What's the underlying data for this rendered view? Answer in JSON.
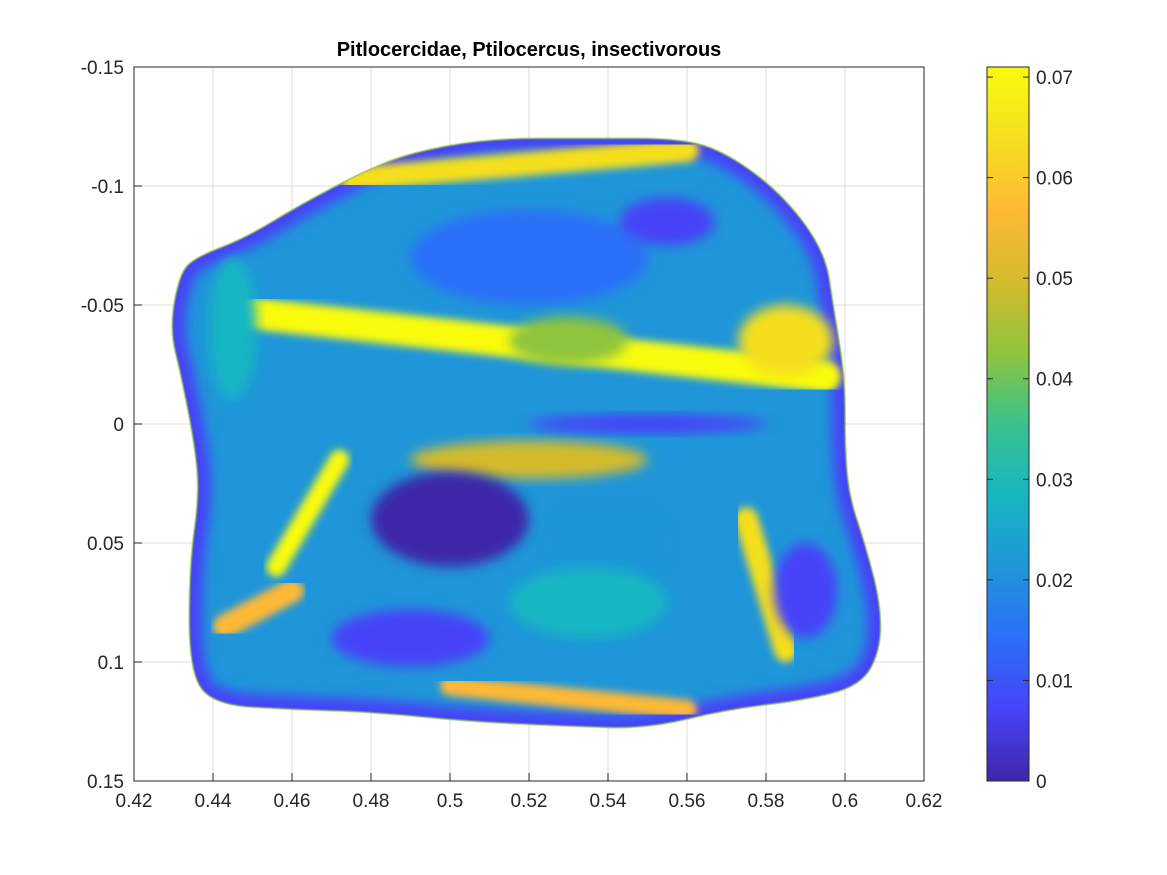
{
  "chart_data": {
    "type": "heatmap",
    "title": "Pitlocercidae, Ptilocercus, insectivorous",
    "xlabel": "",
    "ylabel": "",
    "xlim": [
      0.42,
      0.62
    ],
    "ylim": [
      -0.15,
      0.15
    ],
    "y_reversed": true,
    "grid": true,
    "x_ticks": [
      "0.42",
      "0.44",
      "0.46",
      "0.48",
      "0.5",
      "0.52",
      "0.54",
      "0.56",
      "0.58",
      "0.6",
      "0.62"
    ],
    "y_ticks": [
      "-0.15",
      "-0.1",
      "-0.05",
      "0",
      "0.05",
      "0.1",
      "0.15"
    ],
    "colorbar": {
      "colormap": "parula",
      "range": [
        0,
        0.071
      ],
      "ticks": [
        "0",
        "0.01",
        "0.02",
        "0.03",
        "0.04",
        "0.05",
        "0.06",
        "0.07"
      ],
      "colors": [
        "#3e26a8",
        "#4743f8",
        "#2b6ff9",
        "#1f96d9",
        "#16b6c2",
        "#3ac18d",
        "#8fc43c",
        "#d5bb2c",
        "#feb935",
        "#f5df1e",
        "#f9fb0e"
      ]
    },
    "surface_outline": [
      [
        0.4355,
        -0.07
      ],
      [
        0.448,
        -0.078
      ],
      [
        0.462,
        -0.092
      ],
      [
        0.478,
        -0.106
      ],
      [
        0.49,
        -0.114
      ],
      [
        0.51,
        -0.12
      ],
      [
        0.535,
        -0.12
      ],
      [
        0.56,
        -0.12
      ],
      [
        0.572,
        -0.112
      ],
      [
        0.585,
        -0.095
      ],
      [
        0.595,
        -0.072
      ],
      [
        0.597,
        -0.05
      ],
      [
        0.599,
        -0.03
      ],
      [
        0.6,
        -0.015
      ],
      [
        0.6,
        0.01
      ],
      [
        0.601,
        0.03
      ],
      [
        0.605,
        0.05
      ],
      [
        0.609,
        0.075
      ],
      [
        0.609,
        0.095
      ],
      [
        0.604,
        0.11
      ],
      [
        0.59,
        0.116
      ],
      [
        0.57,
        0.12
      ],
      [
        0.55,
        0.128
      ],
      [
        0.53,
        0.127
      ],
      [
        0.505,
        0.125
      ],
      [
        0.48,
        0.121
      ],
      [
        0.46,
        0.12
      ],
      [
        0.44,
        0.118
      ],
      [
        0.434,
        0.104
      ],
      [
        0.434,
        0.06
      ],
      [
        0.4365,
        0.03
      ],
      [
        0.4355,
        0.01
      ],
      [
        0.432,
        -0.02
      ],
      [
        0.429,
        -0.04
      ],
      [
        0.4315,
        -0.063
      ]
    ],
    "features": [
      {
        "shape": "band",
        "from": [
          0.447,
          -0.047
        ],
        "to": [
          0.595,
          -0.02
        ],
        "width": 0.008,
        "value": 0.07
      },
      {
        "shape": "band",
        "from": [
          0.475,
          -0.103
        ],
        "to": [
          0.56,
          -0.115
        ],
        "width": 0.006,
        "value": 0.065
      },
      {
        "shape": "band",
        "from": [
          0.456,
          0.06
        ],
        "to": [
          0.472,
          0.015
        ],
        "width": 0.005,
        "value": 0.07
      },
      {
        "shape": "band",
        "from": [
          0.443,
          0.085
        ],
        "to": [
          0.46,
          0.07
        ],
        "width": 0.006,
        "value": 0.06
      },
      {
        "shape": "band",
        "from": [
          0.575,
          0.04
        ],
        "to": [
          0.585,
          0.095
        ],
        "width": 0.006,
        "value": 0.063
      },
      {
        "shape": "band",
        "from": [
          0.5,
          0.11
        ],
        "to": [
          0.56,
          0.12
        ],
        "width": 0.005,
        "value": 0.06
      },
      {
        "shape": "blob",
        "center": [
          0.585,
          -0.035
        ],
        "radius": [
          0.012,
          0.015
        ],
        "value": 0.062
      },
      {
        "shape": "blob",
        "center": [
          0.52,
          0.015
        ],
        "radius": [
          0.03,
          0.008
        ],
        "value": 0.05
      },
      {
        "shape": "blob",
        "center": [
          0.5,
          0.04
        ],
        "radius": [
          0.02,
          0.02
        ],
        "value": 0.003
      },
      {
        "shape": "blob",
        "center": [
          0.49,
          0.09
        ],
        "radius": [
          0.02,
          0.012
        ],
        "value": 0.008
      },
      {
        "shape": "blob",
        "center": [
          0.54,
          0.05
        ],
        "radius": [
          0.015,
          0.015
        ],
        "value": 0.02
      },
      {
        "shape": "blob",
        "center": [
          0.52,
          -0.07
        ],
        "radius": [
          0.03,
          0.02
        ],
        "value": 0.012
      },
      {
        "shape": "blob",
        "center": [
          0.555,
          -0.085
        ],
        "radius": [
          0.012,
          0.01
        ],
        "value": 0.008
      },
      {
        "shape": "blob",
        "center": [
          0.53,
          -0.035
        ],
        "radius": [
          0.015,
          0.01
        ],
        "value": 0.045
      },
      {
        "shape": "blob",
        "center": [
          0.445,
          -0.04
        ],
        "radius": [
          0.006,
          0.03
        ],
        "value": 0.025
      },
      {
        "shape": "blob",
        "center": [
          0.59,
          0.07
        ],
        "radius": [
          0.008,
          0.02
        ],
        "value": 0.005
      },
      {
        "shape": "blob",
        "center": [
          0.55,
          0.0
        ],
        "radius": [
          0.03,
          0.004
        ],
        "value": 0.005
      },
      {
        "shape": "blob",
        "center": [
          0.535,
          0.075
        ],
        "radius": [
          0.02,
          0.015
        ],
        "value": 0.03
      }
    ]
  }
}
